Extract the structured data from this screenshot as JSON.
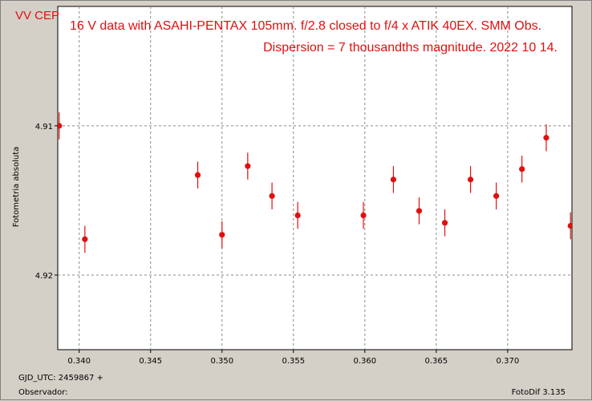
{
  "chart_data": {
    "type": "scatter",
    "star": "VV CEP",
    "title": "16 V data with ASAHI-PENTAX 105mm. f/2.8 closed to f/4 x ATIK 40EX. SMM Obs.",
    "subtitle": "Dispersion  = 7 thousandths magnitude.  2022 10 14.",
    "ylabel": "Fotometria absoluta",
    "xlim": [
      0.3385,
      0.3745
    ],
    "ylim": [
      4.925,
      4.902
    ],
    "y_inverted": true,
    "grid": true,
    "x_ticks": [
      0.34,
      0.345,
      0.35,
      0.355,
      0.36,
      0.365,
      0.37
    ],
    "x_tick_labels": [
      "0.340",
      "0.345",
      "0.350",
      "0.355",
      "0.360",
      "0.365",
      "0.370"
    ],
    "y_ticks": [
      4.91,
      4.92
    ],
    "y_tick_labels": [
      "4.91",
      "4.92"
    ],
    "marker_color": "#e01010",
    "points": [
      {
        "x": 0.3386,
        "y": 4.91,
        "err": 0.0009
      },
      {
        "x": 0.3404,
        "y": 4.9176,
        "err": 0.0009
      },
      {
        "x": 0.3483,
        "y": 4.9133,
        "err": 0.0009
      },
      {
        "x": 0.35,
        "y": 4.9173,
        "err": 0.0009
      },
      {
        "x": 0.3518,
        "y": 4.9127,
        "err": 0.0009
      },
      {
        "x": 0.3535,
        "y": 4.9147,
        "err": 0.0009
      },
      {
        "x": 0.3553,
        "y": 4.916,
        "err": 0.0009
      },
      {
        "x": 0.3599,
        "y": 4.916,
        "err": 0.0009
      },
      {
        "x": 0.362,
        "y": 4.9136,
        "err": 0.0009
      },
      {
        "x": 0.3638,
        "y": 4.9157,
        "err": 0.0009
      },
      {
        "x": 0.3656,
        "y": 4.9165,
        "err": 0.0009
      },
      {
        "x": 0.3674,
        "y": 4.9136,
        "err": 0.0009
      },
      {
        "x": 0.3692,
        "y": 4.9147,
        "err": 0.0009
      },
      {
        "x": 0.371,
        "y": 4.9129,
        "err": 0.0009
      },
      {
        "x": 0.3727,
        "y": 4.9108,
        "err": 0.0009
      },
      {
        "x": 0.3744,
        "y": 4.9167,
        "err": 0.0009
      }
    ]
  },
  "footer": {
    "gjd_label": "GJD_UTC: 2459867 +",
    "observer_label": "Observador:",
    "software": "FotoDif 3.135"
  }
}
